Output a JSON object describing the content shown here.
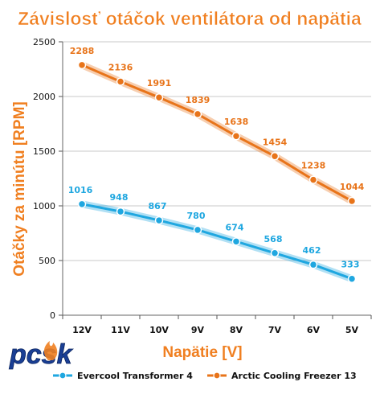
{
  "chart_data": {
    "type": "line",
    "title": "Závislosť otáčok ventilátora od napätia",
    "xlabel": "Napätie [V]",
    "ylabel": "Otáčky za minútu [RPM]",
    "categories": [
      "12V",
      "11V",
      "10V",
      "9V",
      "8V",
      "7V",
      "6V",
      "5V"
    ],
    "ylim": [
      0,
      2500
    ],
    "yticks": [
      0,
      500,
      1000,
      1500,
      2000,
      2500
    ],
    "grid": true,
    "legend": "bottom",
    "series": [
      {
        "name": "Evercool Transformer 4",
        "values": [
          1016,
          948,
          867,
          780,
          674,
          568,
          462,
          333
        ],
        "color": "#1fa7e0"
      },
      {
        "name": "Arctic Cooling Freezer 13",
        "values": [
          2288,
          2136,
          1991,
          1839,
          1638,
          1454,
          1238,
          1044
        ],
        "color": "#e8741a"
      }
    ]
  },
  "logo": {
    "text": "pcsk",
    "colors": [
      "#1a3f95",
      "#f07f20"
    ]
  }
}
